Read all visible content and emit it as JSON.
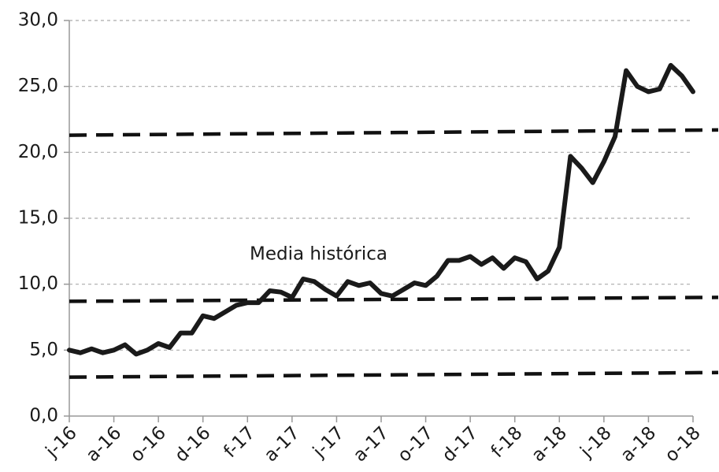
{
  "chart_data": {
    "type": "line",
    "categories": [
      "j-16",
      null,
      null,
      null,
      "a-16",
      null,
      null,
      null,
      "o-16",
      null,
      null,
      null,
      "d-16",
      null,
      null,
      null,
      "f-17",
      null,
      null,
      null,
      "a-17",
      null,
      null,
      null,
      "j-17",
      null,
      null,
      null,
      "a-17",
      null,
      null,
      null,
      "o-17",
      null,
      null,
      null,
      "d-17",
      null,
      null,
      null,
      "f-18",
      null,
      null,
      null,
      "a-18",
      null,
      null,
      null,
      "j-18",
      null,
      null,
      null,
      "a-18",
      null,
      null,
      null,
      "o-18"
    ],
    "series": [
      {
        "color": "#1a1a1a",
        "values": [
          5.0,
          4.8,
          5.1,
          4.8,
          5.0,
          5.4,
          4.7,
          5.0,
          5.5,
          5.2,
          6.3,
          6.3,
          7.6,
          7.4,
          7.9,
          8.4,
          8.6,
          8.6,
          9.5,
          9.4,
          9.0,
          10.4,
          10.2,
          9.6,
          9.1,
          10.2,
          9.9,
          10.1,
          9.3,
          9.1,
          9.6,
          10.1,
          9.9,
          10.6,
          11.8,
          11.8,
          12.1,
          11.5,
          12.0,
          11.2,
          12.0,
          11.7,
          10.4,
          11.0,
          12.8,
          19.7,
          18.8,
          17.7,
          19.3,
          21.2,
          26.2,
          25.0,
          24.6,
          24.8,
          26.6,
          25.8,
          24.6
        ]
      }
    ],
    "reference_lines": [
      {
        "start": 21.3,
        "end": 21.7
      },
      {
        "start": 8.7,
        "end": 9.0
      },
      {
        "start": 2.95,
        "end": 3.3
      }
    ],
    "annotations": [
      {
        "text": "Media histórica"
      }
    ],
    "ylim": [
      0,
      30
    ],
    "yticks": [
      {
        "value": 0,
        "label": "0,0"
      },
      {
        "value": 5,
        "label": "5,0"
      },
      {
        "value": 10,
        "label": "10,0"
      },
      {
        "value": 15,
        "label": "15,0"
      },
      {
        "value": 20,
        "label": "20,0"
      },
      {
        "value": 25,
        "label": "25,0"
      },
      {
        "value": 30,
        "label": "30,0"
      }
    ],
    "grid": true
  }
}
